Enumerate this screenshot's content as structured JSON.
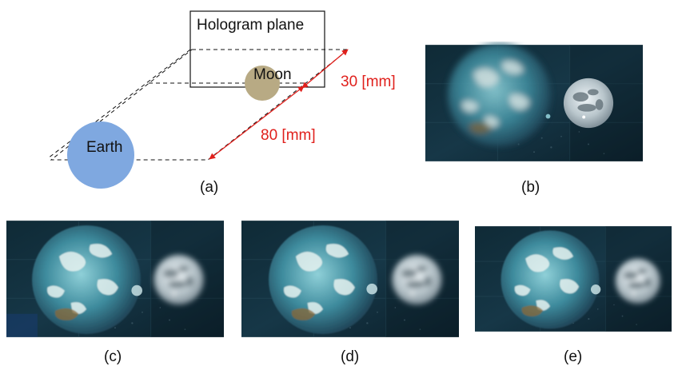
{
  "diagram": {
    "hologram_label": "Hologram plane",
    "moon_label": "Moon",
    "earth_label": "Earth",
    "dist_small": "30 [mm]",
    "dist_large": "80 [mm]",
    "colors": {
      "earth": "#7fa8e0",
      "moon": "#b8aa84",
      "arrow": "#e0201c",
      "line": "#111111"
    }
  },
  "captions": {
    "a": "(a)",
    "b": "(b)",
    "c": "(c)",
    "d": "(d)",
    "e": "(e)"
  },
  "panels": {
    "b": {
      "earth_focus": "blurred",
      "moon_focus": "sharp"
    },
    "c": {
      "earth_focus": "sharp",
      "moon_focus": "blurred"
    },
    "d": {
      "earth_focus": "sharp",
      "moon_focus": "blurred"
    },
    "e": {
      "earth_focus": "sharp",
      "moon_focus": "blurred"
    }
  }
}
